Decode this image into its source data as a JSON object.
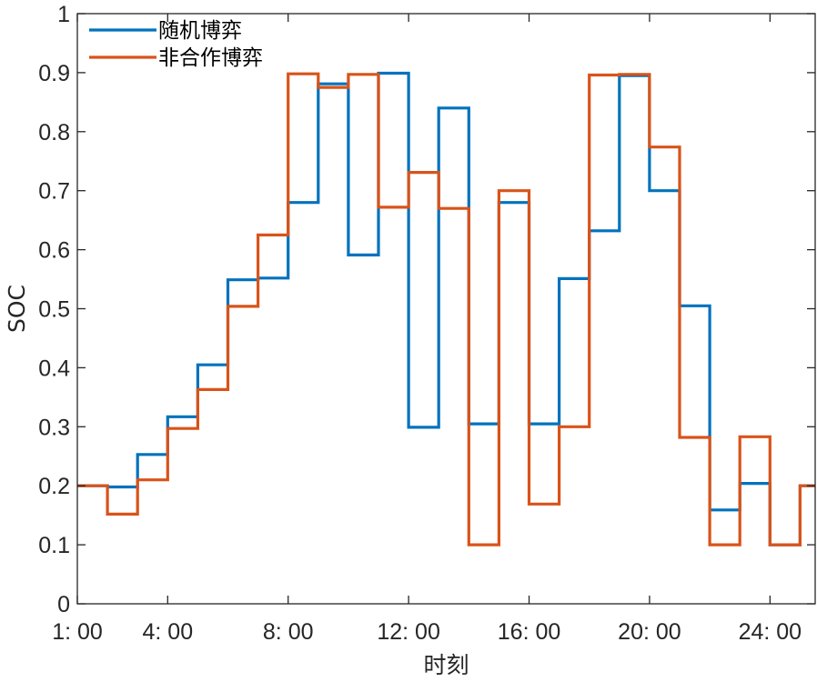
{
  "chart_data": {
    "type": "line",
    "step": "post",
    "title": "",
    "xlabel": "时刻",
    "ylabel": "SOC",
    "x": [
      1,
      2,
      3,
      4,
      5,
      6,
      7,
      8,
      9,
      10,
      11,
      12,
      13,
      14,
      15,
      16,
      17,
      18,
      19,
      20,
      21,
      22,
      23,
      24,
      25
    ],
    "xlim": [
      1,
      25.5
    ],
    "ylim": [
      0,
      1
    ],
    "xticks": [
      1,
      4,
      8,
      12,
      16,
      20,
      24
    ],
    "xtick_labels": [
      "1: 00",
      "4: 00",
      "8: 00",
      "12: 00",
      "16: 00",
      "20: 00",
      "24: 00"
    ],
    "yticks": [
      0,
      0.1,
      0.2,
      0.3,
      0.4,
      0.5,
      0.6,
      0.7,
      0.8,
      0.9,
      1
    ],
    "ytick_labels": [
      "0",
      "0.1",
      "0.2",
      "0.3",
      "0.4",
      "0.5",
      "0.6",
      "0.7",
      "0.8",
      "0.9",
      "1"
    ],
    "grid": false,
    "legend_position": "top-left",
    "series": [
      {
        "name": "随机博弈",
        "color": "#0072BD",
        "values": [
          0.2,
          0.198,
          0.253,
          0.317,
          0.405,
          0.549,
          0.552,
          0.68,
          0.881,
          0.591,
          0.899,
          0.299,
          0.84,
          0.305,
          0.68,
          0.305,
          0.551,
          0.632,
          0.895,
          0.7,
          0.505,
          0.159,
          0.204,
          0.1,
          0.2
        ]
      },
      {
        "name": "非合作博弈",
        "color": "#D95319",
        "values": [
          0.2,
          0.152,
          0.21,
          0.297,
          0.363,
          0.504,
          0.625,
          0.898,
          0.875,
          0.897,
          0.672,
          0.731,
          0.67,
          0.1,
          0.7,
          0.169,
          0.3,
          0.896,
          0.897,
          0.774,
          0.282,
          0.1,
          0.283,
          0.1,
          0.2
        ]
      }
    ]
  }
}
